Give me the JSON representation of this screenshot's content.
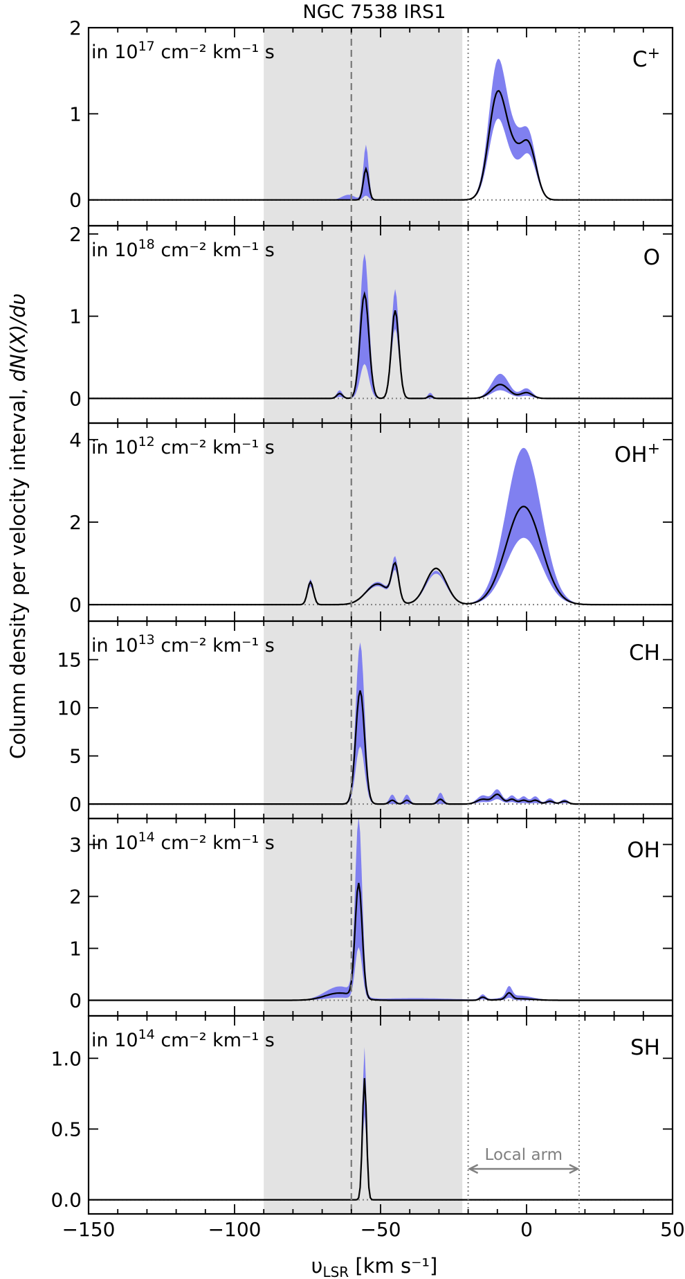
{
  "title": "NGC 7538 IRS1",
  "ylabel": "Column density per velocity interval,",
  "ylabel_math": "dN(X)/dυ",
  "xlabel_prefix": "υ",
  "xlabel_sub": "LSR",
  "xlabel_suffix": " [km s⁻¹]",
  "local_arm_label": "Local arm",
  "colors": {
    "band": "#8080f0",
    "line": "#000000",
    "shade": "#e3e3e3",
    "ref": "#808080"
  },
  "chart_data": {
    "type": "line",
    "xlim": [
      -150,
      50
    ],
    "xticks": [
      -150,
      -100,
      -50,
      0,
      50
    ],
    "xtick_labels": [
      "−150",
      "−100",
      "−50",
      "0",
      "50"
    ],
    "shaded_vrange": [
      -90,
      -22
    ],
    "dashed_line_v": -60,
    "dotted_lines_v": [
      -20,
      18
    ],
    "local_arm_range": [
      -20,
      18
    ],
    "panels": [
      {
        "species": "C",
        "species_sup": "+",
        "unit_prefix": "in 10",
        "unit_exp": "17",
        "unit_suffix": " cm⁻² km⁻¹ s",
        "ylim": [
          -0.3,
          2.0
        ],
        "yticks": [
          0,
          1,
          2
        ],
        "ytick_labels": [
          "0",
          "1",
          "2"
        ],
        "components": [
          {
            "v": -55,
            "w": 0.9,
            "a": 0.36,
            "up": 0.64,
            "lo": 0.05
          },
          {
            "v": -61,
            "w": 2.2,
            "a": 0.0,
            "up": 0.06,
            "lo": 0.0
          },
          {
            "v": -10,
            "w": 3.0,
            "a": 1.2,
            "up": 1.55,
            "lo": 0.9
          },
          {
            "v": -4,
            "w": 3.0,
            "a": 0.45,
            "up": 0.6,
            "lo": 0.3
          },
          {
            "v": 1,
            "w": 2.5,
            "a": 0.55,
            "up": 0.65,
            "lo": 0.45
          }
        ]
      },
      {
        "species": "O",
        "species_sup": "",
        "unit_prefix": "in 10",
        "unit_exp": "18",
        "unit_suffix": " cm⁻² km⁻¹ s",
        "ylim": [
          -0.3,
          2.1
        ],
        "yticks": [
          0,
          1,
          2
        ],
        "ytick_labels": [
          "0",
          "1",
          "2"
        ],
        "components": [
          {
            "v": -64,
            "w": 1.0,
            "a": 0.06,
            "up": 0.1,
            "lo": 0.02
          },
          {
            "v": -55.5,
            "w": 1.5,
            "a": 1.27,
            "up": 1.76,
            "lo": 0.42
          },
          {
            "v": -45,
            "w": 1.3,
            "a": 1.07,
            "up": 1.33,
            "lo": 0.85
          },
          {
            "v": -33,
            "w": 0.8,
            "a": 0.03,
            "up": 0.07,
            "lo": 0.0
          },
          {
            "v": -9,
            "w": 3.0,
            "a": 0.17,
            "up": 0.3,
            "lo": 0.1
          },
          {
            "v": 0,
            "w": 2.0,
            "a": 0.07,
            "up": 0.12,
            "lo": 0.03
          }
        ]
      },
      {
        "species": "OH",
        "species_sup": "+",
        "unit_prefix": "in 10",
        "unit_exp": "12",
        "unit_suffix": " cm⁻² km⁻¹ s",
        "ylim": [
          -0.4,
          4.4
        ],
        "yticks": [
          0,
          2,
          4
        ],
        "ytick_labels": [
          "0",
          "2",
          "4"
        ],
        "components": [
          {
            "v": -74,
            "w": 1.0,
            "a": 0.55,
            "up": 0.62,
            "lo": 0.45
          },
          {
            "v": -51,
            "w": 4.0,
            "a": 0.5,
            "up": 0.55,
            "lo": 0.45
          },
          {
            "v": -45,
            "w": 1.2,
            "a": 0.85,
            "up": 1.0,
            "lo": 0.7
          },
          {
            "v": -31,
            "w": 3.5,
            "a": 0.88,
            "up": 0.82,
            "lo": 0.75
          },
          {
            "v": -1,
            "w": 6.0,
            "a": 2.38,
            "up": 3.8,
            "lo": 1.62
          }
        ]
      },
      {
        "species": "CH",
        "species_sup": "",
        "unit_prefix": "in 10",
        "unit_exp": "13",
        "unit_suffix": " cm⁻² km⁻¹ s",
        "ylim": [
          -1.5,
          19.0
        ],
        "yticks": [
          0,
          5,
          10,
          15
        ],
        "ytick_labels": [
          "0",
          "5",
          "10",
          "15"
        ],
        "components": [
          {
            "v": -57,
            "w": 1.5,
            "a": 11.8,
            "up": 16.8,
            "lo": 6.0
          },
          {
            "v": -46,
            "w": 1.0,
            "a": 0.4,
            "up": 1.0,
            "lo": 0.0
          },
          {
            "v": -41,
            "w": 1.0,
            "a": 0.4,
            "up": 1.0,
            "lo": 0.0
          },
          {
            "v": -29.5,
            "w": 1.0,
            "a": 0.5,
            "up": 1.2,
            "lo": 0.0
          },
          {
            "v": -15,
            "w": 2.0,
            "a": 0.5,
            "up": 0.9,
            "lo": 0.2
          },
          {
            "v": -10,
            "w": 1.6,
            "a": 1.0,
            "up": 1.5,
            "lo": 0.5
          },
          {
            "v": -5,
            "w": 1.3,
            "a": 0.5,
            "up": 0.9,
            "lo": 0.2
          },
          {
            "v": -1,
            "w": 1.3,
            "a": 0.4,
            "up": 0.8,
            "lo": 0.1
          },
          {
            "v": 3,
            "w": 1.3,
            "a": 0.4,
            "up": 0.8,
            "lo": 0.1
          },
          {
            "v": 8,
            "w": 1.3,
            "a": 0.3,
            "up": 0.6,
            "lo": 0.1
          },
          {
            "v": 13,
            "w": 1.3,
            "a": 0.3,
            "up": 0.5,
            "lo": 0.1
          }
        ]
      },
      {
        "species": "OH",
        "species_sup": "",
        "unit_prefix": "in 10",
        "unit_exp": "14",
        "unit_suffix": " cm⁻² km⁻¹ s",
        "ylim": [
          -0.3,
          3.5
        ],
        "yticks": [
          0,
          1,
          2,
          3
        ],
        "ytick_labels": [
          "0",
          "1",
          "2",
          "3"
        ],
        "components": [
          {
            "v": -57.5,
            "w": 1.2,
            "a": 2.2,
            "up": 3.4,
            "lo": 1.0
          },
          {
            "v": -64,
            "w": 5.0,
            "a": 0.14,
            "up": 0.26,
            "lo": 0.05
          },
          {
            "v": -38,
            "w": 14.0,
            "a": 0.0,
            "up": 0.04,
            "lo": 0.0
          },
          {
            "v": -15,
            "w": 1.0,
            "a": 0.06,
            "up": 0.1,
            "lo": 0.02
          },
          {
            "v": -6,
            "w": 1.0,
            "a": 0.12,
            "up": 0.2,
            "lo": 0.05
          },
          {
            "v": -3,
            "w": 5.0,
            "a": 0.03,
            "up": 0.09,
            "lo": 0.0
          }
        ]
      },
      {
        "species": "SH",
        "species_sup": "",
        "unit_prefix": "in 10",
        "unit_exp": "14",
        "unit_suffix": " cm⁻² km⁻¹ s",
        "ylim": [
          -0.1,
          1.3
        ],
        "yticks": [
          0,
          0.5,
          1.0
        ],
        "ytick_labels": [
          "0.0",
          "0.5",
          "1.0"
        ],
        "components": [
          {
            "v": -55.5,
            "w": 0.7,
            "a": 0.86,
            "up": 1.08,
            "lo": 0.6
          }
        ]
      }
    ]
  }
}
